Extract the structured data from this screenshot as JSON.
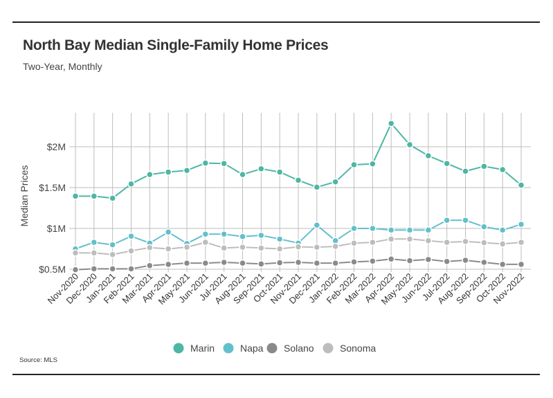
{
  "header": {
    "title": "North Bay Median Single-Family Home Prices",
    "subtitle": "Two-Year, Monthly"
  },
  "footer": {
    "source": "Source:  MLS"
  },
  "chart_data": {
    "type": "line",
    "title": "North Bay Median Single-Family Home Prices",
    "subtitle": "Two-Year, Monthly",
    "xlabel": "",
    "ylabel": "Median Prices",
    "x": [
      "Nov-2020",
      "Dec-2020",
      "Jan-2021",
      "Feb-2021",
      "Mar-2021",
      "Apr-2021",
      "May-2021",
      "Jun-2021",
      "Jul-2021",
      "Aug-2021",
      "Sep-2021",
      "Oct-2021",
      "Nov-2021",
      "Dec-2021",
      "Jan-2022",
      "Feb-2022",
      "Mar-2022",
      "Apr-2022",
      "May-2022",
      "Jun-2022",
      "Jul-2022",
      "Aug-2022",
      "Sep-2022",
      "Oct-2022",
      "Nov-2022"
    ],
    "yticks": [
      {
        "value": 500000,
        "label": "$0.5M"
      },
      {
        "value": 1000000,
        "label": "$1M"
      },
      {
        "value": 1500000,
        "label": "$1.5M"
      },
      {
        "value": 2000000,
        "label": "$2M"
      }
    ],
    "ylim": [
      400000,
      2500000
    ],
    "grid": true,
    "legend_position": "bottom",
    "series": [
      {
        "name": "Marin",
        "color": "#4db6a4",
        "values": [
          1395000,
          1395000,
          1370000,
          1545000,
          1660000,
          1690000,
          1710000,
          1800000,
          1795000,
          1660000,
          1730000,
          1690000,
          1590000,
          1505000,
          1570000,
          1780000,
          1790000,
          2285000,
          2025000,
          1890000,
          1795000,
          1700000,
          1760000,
          1720000,
          1530000
        ]
      },
      {
        "name": "Napa",
        "color": "#62c0cc",
        "values": [
          750000,
          830000,
          800000,
          905000,
          820000,
          955000,
          815000,
          930000,
          930000,
          900000,
          915000,
          870000,
          820000,
          1040000,
          850000,
          1000000,
          1000000,
          980000,
          980000,
          980000,
          1100000,
          1100000,
          1020000,
          980000,
          1050000
        ]
      },
      {
        "name": "Solano",
        "color": "#8a8a8a",
        "values": [
          495000,
          505000,
          505000,
          505000,
          545000,
          560000,
          575000,
          575000,
          585000,
          575000,
          565000,
          580000,
          585000,
          575000,
          575000,
          590000,
          600000,
          625000,
          605000,
          620000,
          595000,
          610000,
          585000,
          560000,
          560000
        ]
      },
      {
        "name": "Sonoma",
        "color": "#bdbdbd",
        "values": [
          700000,
          700000,
          680000,
          725000,
          765000,
          750000,
          770000,
          830000,
          760000,
          770000,
          760000,
          750000,
          775000,
          770000,
          780000,
          820000,
          830000,
          870000,
          870000,
          850000,
          830000,
          840000,
          825000,
          810000,
          830000
        ]
      }
    ]
  }
}
